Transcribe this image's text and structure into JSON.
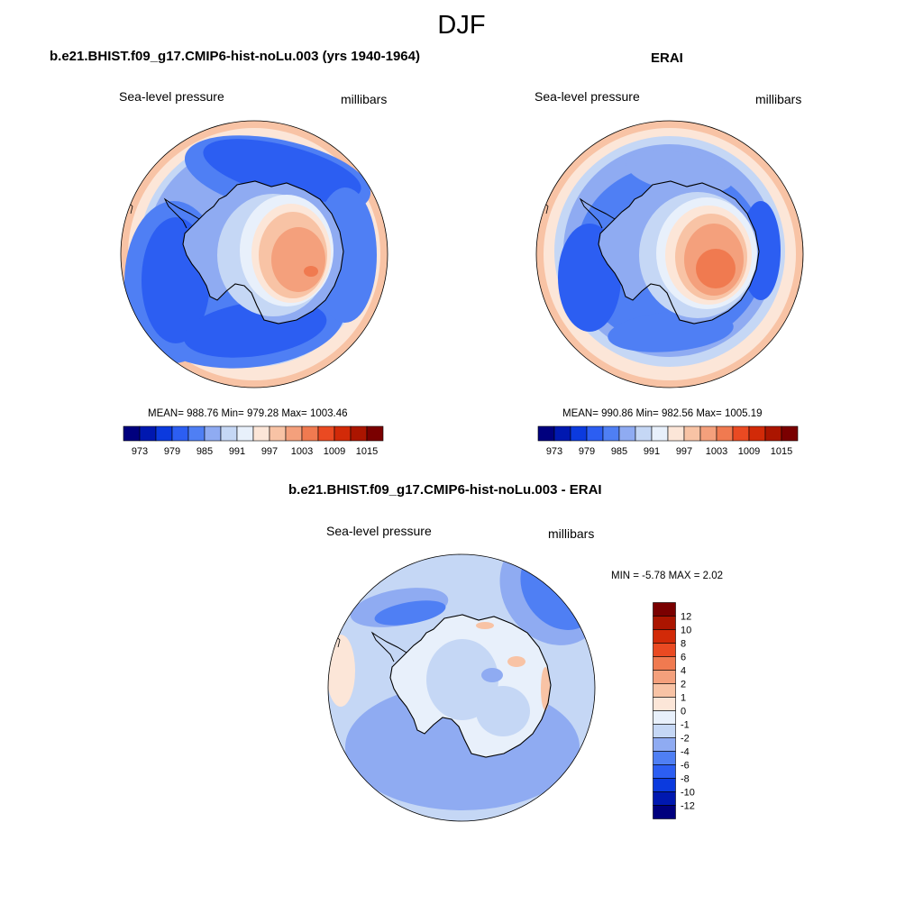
{
  "figure": {
    "title": "DJF"
  },
  "colors": {
    "abs_scale": [
      "#00007e",
      "#0018b0",
      "#0b3ade",
      "#2c5ef2",
      "#4f7ff4",
      "#8fabf2",
      "#c5d7f5",
      "#e8f0fb",
      "#fce6d8",
      "#f8c3a5",
      "#f4a07c",
      "#f07a50",
      "#ea4a22",
      "#d22a08",
      "#ab1500",
      "#7a0000"
    ],
    "diff_scale": [
      "#7a0000",
      "#ab1500",
      "#d22a08",
      "#ea4a22",
      "#f07a50",
      "#f4a07c",
      "#f8c3a5",
      "#fce6d8",
      "#e8f0fb",
      "#c5d7f5",
      "#8fabf2",
      "#4f7ff4",
      "#2c5ef2",
      "#0b3ade",
      "#0018b0",
      "#00007e"
    ],
    "land_outline": "#000000"
  },
  "panels": [
    {
      "title": "b.e21.BHIST.f09_g17.CMIP6-hist-noLu.003 (yrs 1940-1964)",
      "variable": "Sea-level pressure",
      "units": "millibars",
      "stats": "MEAN= 988.76  Min= 979.28  Max= 1003.46"
    },
    {
      "title": "ERAI",
      "variable": "Sea-level pressure",
      "units": "millibars",
      "stats": "MEAN= 990.86  Min= 982.56  Max= 1005.19"
    },
    {
      "title": "b.e21.BHIST.f09_g17.CMIP6-hist-noLu.003 - ERAI",
      "variable": "Sea-level pressure",
      "units": "millibars",
      "stats": "MIN =  -5.78 MAX =   2.02"
    }
  ],
  "chart_data": [
    {
      "type": "heatmap",
      "projection": "south polar stereographic",
      "title": "b.e21.BHIST.f09_g17.CMIP6-hist-noLu.003 (yrs 1940-1964)",
      "variable": "Sea-level pressure",
      "units": "millibars",
      "mean": 988.76,
      "min": 979.28,
      "max": 1003.46,
      "colorbar_levels": [
        973,
        976,
        979,
        982,
        985,
        988,
        991,
        994,
        997,
        1000,
        1003,
        1006,
        1009,
        1012,
        1015
      ],
      "colorbar_tick_labels": [
        "973",
        "979",
        "985",
        "991",
        "997",
        "1003",
        "1009",
        "1015"
      ]
    },
    {
      "type": "heatmap",
      "projection": "south polar stereographic",
      "title": "ERAI",
      "variable": "Sea-level pressure",
      "units": "millibars",
      "mean": 990.86,
      "min": 982.56,
      "max": 1005.19,
      "colorbar_levels": [
        973,
        976,
        979,
        982,
        985,
        988,
        991,
        994,
        997,
        1000,
        1003,
        1006,
        1009,
        1012,
        1015
      ],
      "colorbar_tick_labels": [
        "973",
        "979",
        "985",
        "991",
        "997",
        "1003",
        "1009",
        "1015"
      ]
    },
    {
      "type": "heatmap",
      "projection": "south polar stereographic",
      "title": "b.e21.BHIST.f09_g17.CMIP6-hist-noLu.003 - ERAI",
      "variable": "Sea-level pressure",
      "units": "millibars",
      "min": -5.78,
      "max": 2.02,
      "colorbar_levels": [
        12,
        10,
        8,
        6,
        4,
        2,
        1,
        0,
        -1,
        -2,
        -4,
        -6,
        -8,
        -10,
        -12
      ],
      "colorbar_tick_labels": [
        "12",
        "10",
        "8",
        "6",
        "4",
        "2",
        "1",
        "0",
        "-1",
        "-2",
        "-4",
        "-6",
        "-8",
        "-10",
        "-12"
      ]
    }
  ]
}
